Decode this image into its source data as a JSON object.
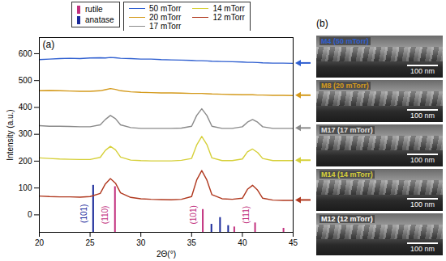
{
  "chart_data": {
    "type": "line",
    "panel_label": "(a)",
    "x_label": "2Θ(°)",
    "y_label": "Intensity (a.u.)",
    "xlim": [
      20,
      45
    ],
    "xticks": [
      20,
      25,
      30,
      35,
      40,
      45
    ],
    "ylim": [
      -65,
      660
    ],
    "yticks": [
      0,
      100,
      200,
      300,
      400,
      500,
      600
    ],
    "grid": false,
    "legend": "top",
    "x": [
      20,
      21,
      22,
      23,
      24,
      25,
      26,
      26.5,
      27,
      27.5,
      28,
      29,
      30,
      31,
      32,
      33,
      34,
      35,
      35.5,
      36,
      36.5,
      37,
      38,
      39,
      40,
      40.5,
      41,
      41.5,
      42,
      43,
      44,
      45
    ],
    "series": [
      {
        "name": "50 mTorr",
        "color": "#2f5fd0",
        "values": [
          578,
          580,
          582,
          583,
          582,
          584,
          585,
          584,
          586,
          585,
          583,
          582,
          580,
          580,
          578,
          577,
          576,
          575,
          574,
          574,
          573,
          572,
          571,
          570,
          569,
          568,
          568,
          567,
          566,
          565,
          565,
          564
        ]
      },
      {
        "name": "20 mTorr",
        "color": "#d49a1c",
        "values": [
          462,
          463,
          462,
          461,
          460,
          460,
          462,
          466,
          470,
          467,
          462,
          458,
          456,
          455,
          454,
          454,
          453,
          452,
          452,
          452,
          451,
          450,
          449,
          448,
          447,
          447,
          447,
          446,
          446,
          445,
          445,
          444
        ]
      },
      {
        "name": "17 mTorr",
        "color": "#8a8a8a",
        "values": [
          332,
          330,
          330,
          329,
          328,
          328,
          335,
          355,
          370,
          358,
          335,
          325,
          322,
          322,
          322,
          322,
          323,
          330,
          370,
          395,
          370,
          330,
          322,
          322,
          328,
          345,
          355,
          345,
          328,
          322,
          322,
          322
        ]
      },
      {
        "name": "14 mTorr",
        "color": "#d6d03a",
        "values": [
          212,
          210,
          208,
          207,
          206,
          206,
          214,
          240,
          255,
          242,
          215,
          204,
          202,
          201,
          201,
          201,
          203,
          210,
          260,
          292,
          262,
          212,
          202,
          202,
          208,
          235,
          245,
          232,
          210,
          202,
          202,
          202
        ]
      },
      {
        "name": "12 mTorr",
        "color": "#b0381e",
        "values": [
          70,
          68,
          67,
          67,
          66,
          68,
          80,
          115,
          135,
          118,
          82,
          65,
          60,
          58,
          57,
          56,
          58,
          68,
          130,
          165,
          130,
          75,
          60,
          58,
          62,
          95,
          110,
          92,
          62,
          55,
          54,
          54
        ]
      }
    ],
    "reference_patterns": [
      {
        "name": "rutile",
        "color": "#c2307e",
        "peaks": [
          27.45,
          36.1,
          39.2,
          41.25,
          44.05
        ],
        "heights": [
          105,
          20,
          -45,
          -30,
          -50
        ]
      },
      {
        "name": "anatase",
        "color": "#1a2a9a",
        "peaks": [
          25.3,
          36.95,
          37.8,
          38.6
        ],
        "heights": [
          110,
          -35,
          -10,
          -40
        ]
      }
    ],
    "annotations": [
      {
        "text": "(101)",
        "x": 24.4,
        "y": 5,
        "color": "#1a2a9a"
      },
      {
        "text": "(110)",
        "x": 26.5,
        "y": 0,
        "color": "#c2307e"
      },
      {
        "text": "(101)",
        "x": 35.2,
        "y": 0,
        "color": "#c2307e"
      },
      {
        "text": "(111)",
        "x": 40.4,
        "y": 0,
        "color": "#c2307e"
      }
    ]
  },
  "sem_panel": {
    "panel_label": "(b)",
    "images": [
      {
        "label": "M4 (50 mTorr)",
        "color": "#2f5fd0",
        "scale_bar": "100 nm"
      },
      {
        "label": "M8 (20 mTorr)",
        "color": "#d49a1c",
        "scale_bar": "100 nm"
      },
      {
        "label": "M17 (17 mTorr)",
        "color": "#e0e0e0",
        "scale_bar": "100 nm"
      },
      {
        "label": "M14 (14 mTorr)",
        "color": "#d6d03a",
        "scale_bar": "100 nm"
      },
      {
        "label": "M12 (12 mTorr)",
        "color": "#ffffff",
        "scale_bar": "100 nm"
      }
    ]
  }
}
